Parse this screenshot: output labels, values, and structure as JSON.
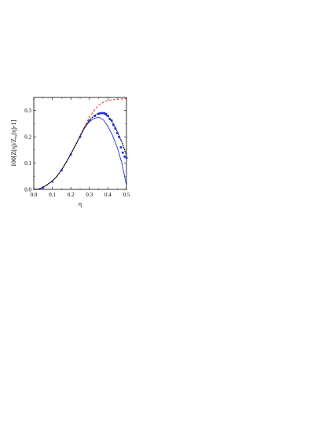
{
  "chart_data": {
    "type": "line",
    "xlabel": "η",
    "ylabel": "100[Z(η)/Z_cs(η)-1]",
    "xlim": [
      0.0,
      0.5
    ],
    "ylim": [
      0.0,
      0.35
    ],
    "x_ticks": [
      "0.0",
      "0.1",
      "0.2",
      "0.3",
      "0.4",
      "0.5"
    ],
    "y_ticks": [
      "0.0",
      "0.1",
      "0.2",
      "0.3"
    ],
    "grid": false,
    "legend": "none",
    "series": [
      {
        "style": "solid",
        "color": "#1f2fd6",
        "x": [
          0.0,
          0.025,
          0.05,
          0.075,
          0.1,
          0.125,
          0.15,
          0.175,
          0.2,
          0.225,
          0.25,
          0.275,
          0.3,
          0.325,
          0.35,
          0.375,
          0.4,
          0.425,
          0.45,
          0.475,
          0.5
        ],
        "y": [
          0.0,
          0.001,
          0.008,
          0.019,
          0.032,
          0.05,
          0.075,
          0.103,
          0.135,
          0.168,
          0.202,
          0.235,
          0.258,
          0.27,
          0.275,
          0.265,
          0.24,
          0.205,
          0.16,
          0.1,
          0.015
        ]
      },
      {
        "style": "dashed",
        "color": "#d62020",
        "x": [
          0.0,
          0.025,
          0.05,
          0.075,
          0.1,
          0.125,
          0.15,
          0.175,
          0.2,
          0.225,
          0.25,
          0.275,
          0.3,
          0.325,
          0.35,
          0.375,
          0.4,
          0.425,
          0.45,
          0.475,
          0.5
        ],
        "y": [
          0.0,
          0.001,
          0.008,
          0.019,
          0.032,
          0.05,
          0.075,
          0.103,
          0.135,
          0.168,
          0.205,
          0.24,
          0.275,
          0.3,
          0.32,
          0.332,
          0.338,
          0.341,
          0.343,
          0.344,
          0.346
        ]
      },
      {
        "style": "dotted",
        "color": "#000000",
        "x": [
          0.0,
          0.025,
          0.05,
          0.075,
          0.1,
          0.125,
          0.15,
          0.175,
          0.2,
          0.225,
          0.25,
          0.275,
          0.3,
          0.325,
          0.35,
          0.375,
          0.4,
          0.425,
          0.45,
          0.475,
          0.5
        ],
        "y": [
          0.0,
          0.001,
          0.008,
          0.019,
          0.032,
          0.05,
          0.075,
          0.103,
          0.135,
          0.168,
          0.203,
          0.237,
          0.263,
          0.28,
          0.29,
          0.29,
          0.278,
          0.255,
          0.22,
          0.18,
          0.13
        ]
      },
      {
        "style": "markers",
        "color": "#1f2fd6",
        "x": [
          0.05,
          0.1,
          0.15,
          0.2,
          0.25,
          0.3,
          0.33,
          0.35,
          0.36,
          0.37,
          0.38,
          0.39,
          0.4,
          0.41,
          0.42,
          0.43,
          0.44,
          0.45,
          0.46,
          0.47,
          0.48,
          0.49,
          0.5
        ],
        "y": [
          0.007,
          0.03,
          0.073,
          0.133,
          0.2,
          0.262,
          0.28,
          0.288,
          0.29,
          0.29,
          0.29,
          0.287,
          0.28,
          0.268,
          0.262,
          0.245,
          0.232,
          0.215,
          0.2,
          0.16,
          0.14,
          0.125,
          0.12
        ]
      }
    ]
  }
}
